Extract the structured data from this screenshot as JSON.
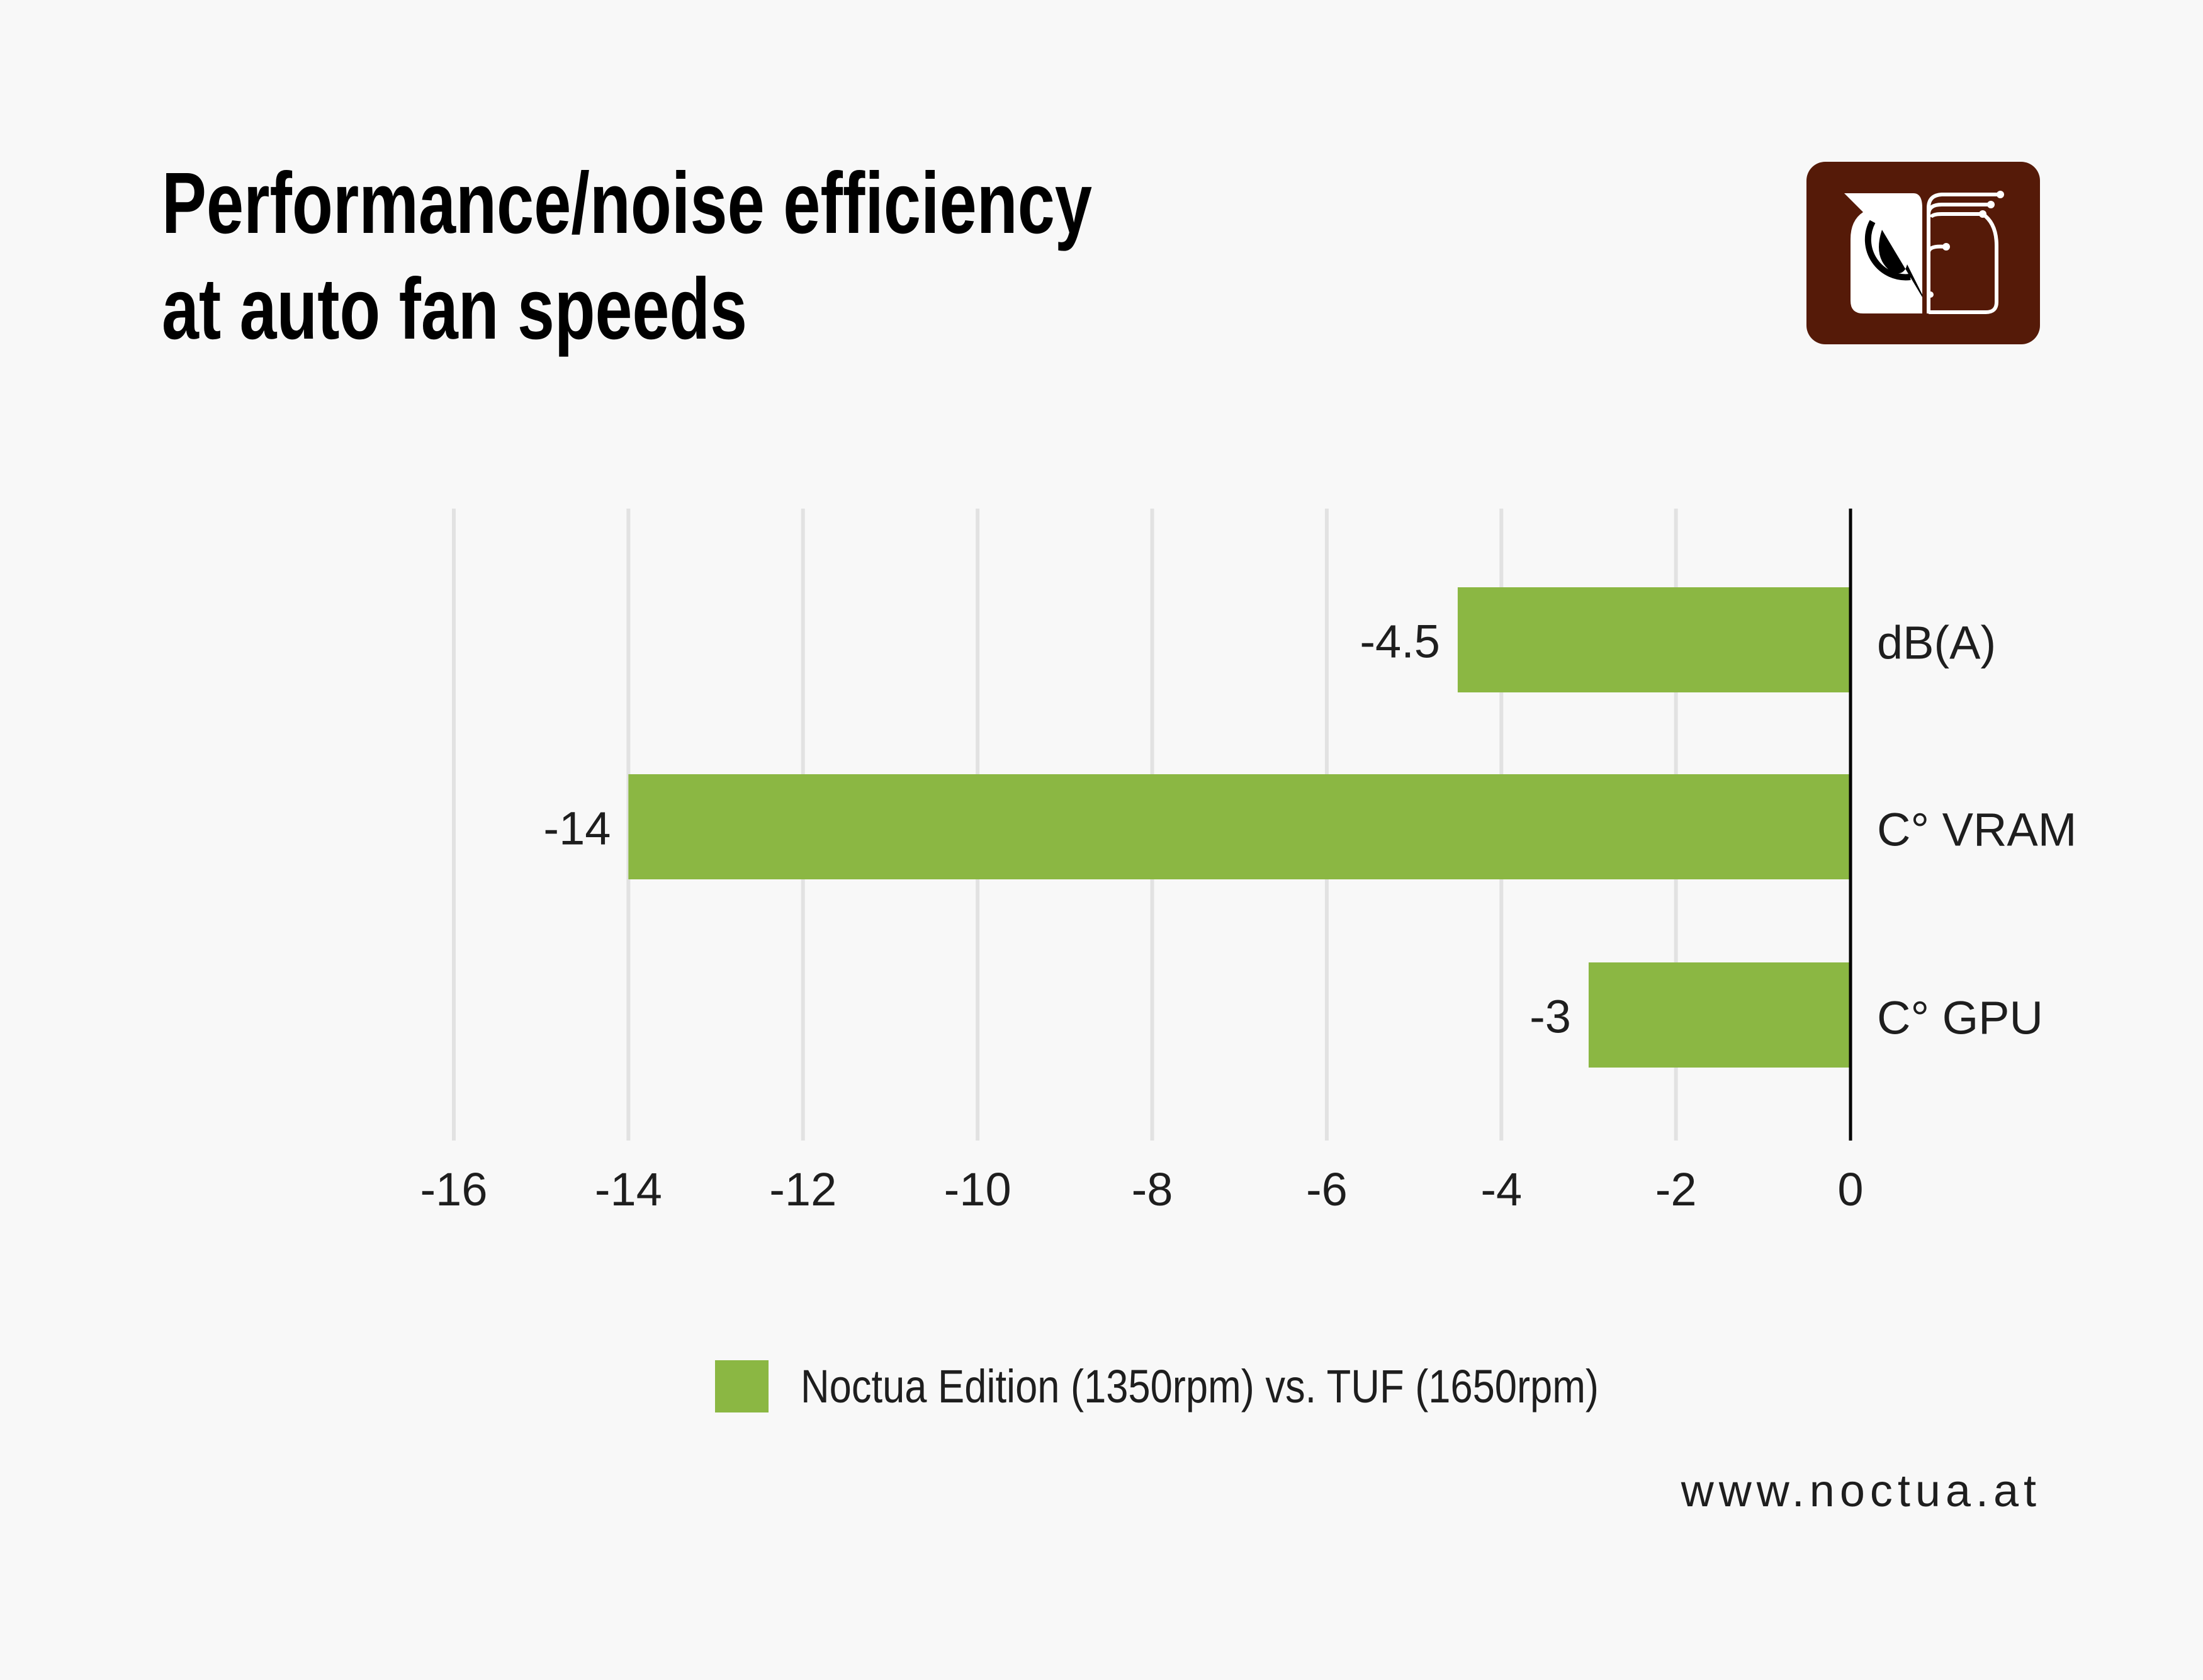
{
  "title_lines": [
    "Performance/noise efficiency",
    "at auto fan speeds"
  ],
  "website": "www.noctua.at",
  "logo": {
    "name": "noctua-owl-logo",
    "background": "#551a08"
  },
  "chart_data": {
    "type": "bar",
    "orientation": "horizontal",
    "categories": [
      "dB(A)",
      "C° VRAM",
      "C° GPU"
    ],
    "series": [
      {
        "name": "Noctua Edition (1350rpm) vs. TUF (1650rpm)",
        "values": [
          -4.5,
          -14,
          -3
        ],
        "color": "#8bb743"
      }
    ],
    "data_labels": [
      "-4.5",
      "-14",
      "-3"
    ],
    "xlim": [
      -16,
      0
    ],
    "xticks": [
      -16,
      -14,
      -12,
      -10,
      -8,
      -6,
      -4,
      -2,
      0
    ],
    "xtick_labels": [
      "-16",
      "-14",
      "-12",
      "-10",
      "-8",
      "-6",
      "-4",
      "-2",
      "0"
    ],
    "grid": true,
    "legend_position": "bottom",
    "title": "Performance/noise efficiency at auto fan speeds"
  }
}
